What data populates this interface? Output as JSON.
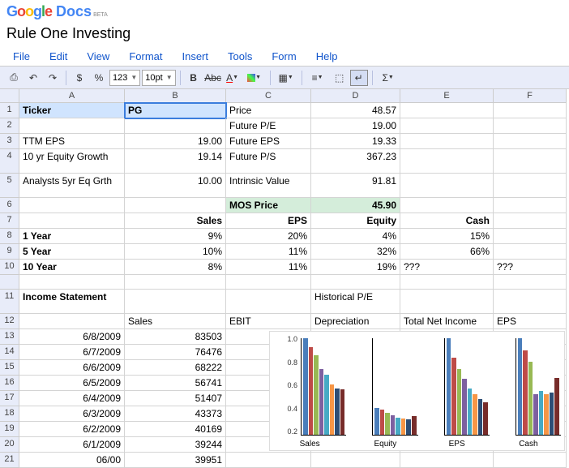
{
  "app": {
    "brand": "Google",
    "product": "Docs",
    "badge": "BETA"
  },
  "docTitle": "Rule One Investing",
  "menus": [
    "File",
    "Edit",
    "View",
    "Format",
    "Insert",
    "Tools",
    "Form",
    "Help"
  ],
  "toolbar": {
    "fontSize": "10pt",
    "numFmt": "123"
  },
  "columns": [
    "",
    "A",
    "B",
    "C",
    "D",
    "E",
    "F"
  ],
  "rows": [
    "1",
    "2",
    "3",
    "4",
    "5",
    "6",
    "7",
    "8",
    "9",
    "10",
    "",
    "11",
    "12",
    "13",
    "14",
    "15",
    "16",
    "17",
    "18",
    "19",
    "20",
    "21"
  ],
  "cells": {
    "r1": {
      "A": "Ticker",
      "B": "PG",
      "C": "Price",
      "D": "48.57"
    },
    "r2": {
      "C": "Future P/E",
      "D": "19.00"
    },
    "r3": {
      "A": "TTM EPS",
      "B": "19.00",
      "C": "Future EPS",
      "D": "19.33"
    },
    "r4": {
      "A": "10 yr Equity Growth",
      "B": "19.14",
      "C": "Future P/S",
      "D": "367.23"
    },
    "r5": {
      "A": "Analysts 5yr Eq Grth",
      "B": "10.00",
      "C": "Intrinsic Value",
      "D": "91.81"
    },
    "r6": {
      "C": "MOS Price",
      "D": "45.90"
    },
    "r7": {
      "B": "Sales",
      "C": "EPS",
      "D": "Equity",
      "E": "Cash"
    },
    "r8": {
      "A": "1 Year",
      "B": "9%",
      "C": "20%",
      "D": "4%",
      "E": "15%"
    },
    "r9": {
      "A": "5 Year",
      "B": "10%",
      "C": "11%",
      "D": "32%",
      "E": "66%"
    },
    "r10": {
      "A": "10 Year",
      "B": "8%",
      "C": "11%",
      "D": "19%",
      "E": "???",
      "F": "???"
    },
    "r11": {
      "A": "Income Statement",
      "D": "Historical P/E"
    },
    "r12": {
      "B": "Sales",
      "C": "EBIT",
      "D": "Depreciation",
      "E": "Total Net Income",
      "F": "EPS"
    },
    "r13": {
      "A": "6/8/2009",
      "B": "83503"
    },
    "r14": {
      "A": "6/7/2009",
      "B": "76476"
    },
    "r15": {
      "A": "6/6/2009",
      "B": "68222"
    },
    "r16": {
      "A": "6/5/2009",
      "B": "56741"
    },
    "r17": {
      "A": "6/4/2009",
      "B": "51407"
    },
    "r18": {
      "A": "6/3/2009",
      "B": "43373"
    },
    "r19": {
      "A": "6/2/2009",
      "B": "40169"
    },
    "r20": {
      "A": "6/1/2009",
      "B": "39244"
    },
    "r21": {
      "A": "06/00",
      "B": "39951"
    }
  },
  "chart": {
    "type": "grouped-bar-small-multiples",
    "yticks": [
      "1.0",
      "0.8",
      "0.6",
      "0.4",
      "0.2"
    ],
    "ylim": [
      0,
      1.0
    ],
    "bar_colors": [
      "#4a7ebb",
      "#be4b48",
      "#98b954",
      "#7d60a0",
      "#46aac5",
      "#f79646",
      "#2c4d75",
      "#772c2a"
    ],
    "panels": [
      {
        "label": "Sales",
        "values": [
          1.0,
          0.91,
          0.82,
          0.68,
          0.62,
          0.52,
          0.48,
          0.47
        ]
      },
      {
        "label": "Equity",
        "values": [
          0.28,
          0.26,
          0.23,
          0.2,
          0.18,
          0.17,
          0.16,
          0.19
        ]
      },
      {
        "label": "EPS",
        "values": [
          1.0,
          0.8,
          0.68,
          0.58,
          0.48,
          0.42,
          0.37,
          0.34
        ]
      },
      {
        "label": "Cash",
        "values": [
          1.0,
          0.87,
          0.76,
          0.42,
          0.45,
          0.42,
          0.44,
          0.59
        ]
      }
    ],
    "background_color": "#ffffff",
    "axis_color": "#000000",
    "label_fontsize": 10
  }
}
